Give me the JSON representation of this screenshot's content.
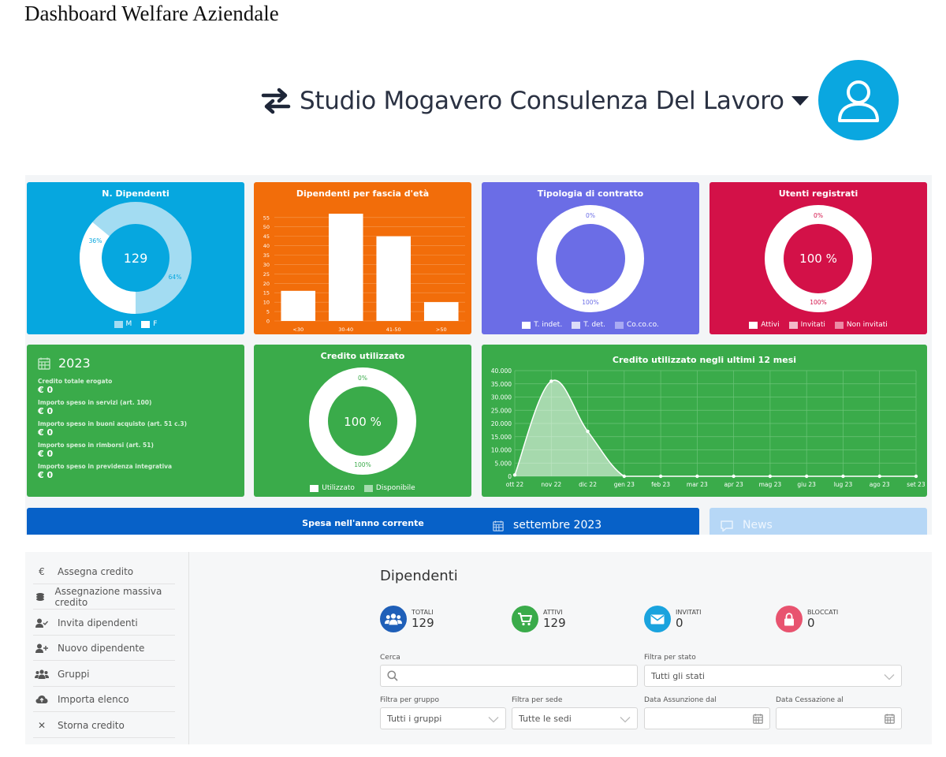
{
  "page": {
    "title": "Dashboard Welfare Aziendale"
  },
  "header": {
    "company": "Studio Mogavero Consulenza Del Lavoro",
    "swap_icon": "swap-arrows-icon",
    "caret_icon": "caret-down-icon",
    "avatar_icon": "user-avatar-icon"
  },
  "colors": {
    "blue": "#06a7df",
    "orange": "#f26d0a",
    "purple": "#6b6de6",
    "red": "#d31148",
    "green": "#3aab4a",
    "navy": "#0761c8"
  },
  "cards": {
    "dipendenti": {
      "title": "N. Dipendenti",
      "center": "129",
      "label_a": "36%",
      "label_b": "64%",
      "legend": [
        "M",
        "F"
      ]
    },
    "eta": {
      "title": "Dipendenti per fascia d'età"
    },
    "contratto": {
      "title": "Tipologia di contratto",
      "label_top": "0%",
      "label_bottom": "100%",
      "legend": [
        "T. indet.",
        "T. det.",
        "Co.co.co."
      ]
    },
    "utenti": {
      "title": "Utenti registrati",
      "center": "100 %",
      "label_top": "0%",
      "label_bottom": "100%",
      "legend": [
        "Attivi",
        "Invitati",
        "Non invitati"
      ]
    },
    "anno": {
      "year": "2023",
      "items": [
        {
          "label": "Credito totale erogato",
          "value": "€ 0"
        },
        {
          "label": "Importo speso in servizi (art. 100)",
          "value": "€ 0"
        },
        {
          "label": "Importo speso in buoni acquisto (art. 51 c.3)",
          "value": "€ 0"
        },
        {
          "label": "Importo speso in rimborsi (art. 51)",
          "value": "€ 0"
        },
        {
          "label": "Importo speso in previdenza integrativa",
          "value": "€ 0"
        }
      ]
    },
    "credito": {
      "title": "Credito utilizzato",
      "center": "100 %",
      "label_top": "0%",
      "label_bottom": "100%",
      "legend": [
        "Utilizzato",
        "Disponibile"
      ]
    },
    "mesi": {
      "title": "Credito utilizzato negli ultimi 12 mesi"
    },
    "spesa": {
      "title": "Spesa nell'anno corrente"
    },
    "mese": {
      "title": "settembre 2023"
    },
    "news": {
      "title": "News"
    }
  },
  "chart_data": [
    {
      "type": "pie",
      "title": "N. Dipendenti",
      "categories": [
        "M",
        "F"
      ],
      "values": [
        36,
        64
      ],
      "center_text": "129"
    },
    {
      "type": "bar",
      "title": "Dipendenti per fascia d'età",
      "categories": [
        "<30",
        "30-40",
        "41-50",
        ">50"
      ],
      "values": [
        16,
        57,
        45,
        10
      ],
      "yticks": [
        "55",
        "50",
        "45",
        "40",
        "35",
        "30",
        "25",
        "20",
        "15",
        "10",
        "5",
        "0"
      ],
      "ylim": [
        0,
        57
      ]
    },
    {
      "type": "pie",
      "title": "Tipologia di contratto",
      "categories": [
        "T. indet.",
        "T. det.",
        "Co.co.co."
      ],
      "values": [
        100,
        0,
        0
      ]
    },
    {
      "type": "pie",
      "title": "Utenti registrati",
      "categories": [
        "Attivi",
        "Invitati",
        "Non invitati"
      ],
      "values": [
        100,
        0,
        0
      ],
      "center_text": "100 %"
    },
    {
      "type": "pie",
      "title": "Credito utilizzato",
      "categories": [
        "Utilizzato",
        "Disponibile"
      ],
      "values": [
        100,
        0
      ],
      "center_text": "100 %"
    },
    {
      "type": "area",
      "title": "Credito utilizzato negli ultimi 12 mesi",
      "categories": [
        "ott 22",
        "nov 22",
        "dic 22",
        "gen 23",
        "feb 23",
        "mar 23",
        "apr 23",
        "mag 23",
        "giu 23",
        "lug 23",
        "ago 23",
        "set 23"
      ],
      "values": [
        500,
        36000,
        17000,
        0,
        0,
        0,
        0,
        0,
        0,
        0,
        0,
        0
      ],
      "yticks": [
        "40.000",
        "35.000",
        "30.000",
        "25.000",
        "20.000",
        "15.000",
        "10.000",
        "5.000",
        "0"
      ],
      "ylim": [
        0,
        40000
      ],
      "grid": true
    }
  ],
  "sidebar": {
    "items": [
      {
        "label": "Assegna credito",
        "icon": "euro-icon"
      },
      {
        "label": "Assegnazione massiva credito",
        "icon": "coins-icon"
      },
      {
        "label": "Invita dipendenti",
        "icon": "user-check-icon"
      },
      {
        "label": "Nuovo dipendente",
        "icon": "user-plus-icon"
      },
      {
        "label": "Gruppi",
        "icon": "users-icon"
      },
      {
        "label": "Importa elenco",
        "icon": "cloud-upload-icon"
      },
      {
        "label": "Storna credito",
        "icon": "times-icon"
      }
    ]
  },
  "dipendenti": {
    "title": "Dipendenti",
    "stats": [
      {
        "label": "TOTALI",
        "value": "129",
        "color": "#1f5fb8",
        "icon": "users-icon"
      },
      {
        "label": "ATTIVI",
        "value": "129",
        "color": "#3aab4a",
        "icon": "cart-icon"
      },
      {
        "label": "INVITATI",
        "value": "0",
        "color": "#1aa3de",
        "icon": "envelope-icon"
      },
      {
        "label": "BLOCCATI",
        "value": "0",
        "color": "#e8536f",
        "icon": "lock-icon"
      }
    ]
  },
  "filters": {
    "search_label": "Cerca",
    "stato_label": "Filtra per stato",
    "stato_value": "Tutti gli stati",
    "gruppo_label": "Filtra per gruppo",
    "gruppo_value": "Tutti i gruppi",
    "sede_label": "Filtra per sede",
    "sede_value": "Tutte le sedi",
    "assunzione_label": "Data Assunzione dal",
    "cessazione_label": "Data Cessazione al"
  }
}
